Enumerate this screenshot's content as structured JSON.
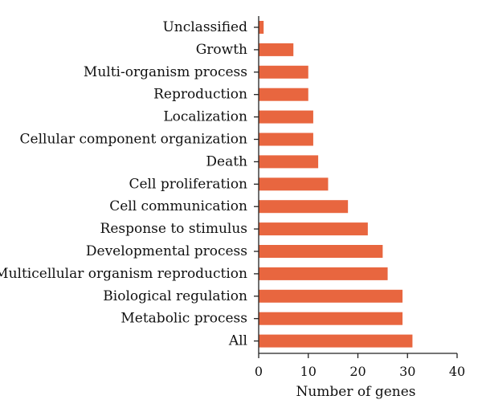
{
  "chart_data": {
    "type": "bar",
    "orientation": "horizontal",
    "title": "",
    "xlabel": "Number of genes",
    "ylabel": "",
    "xlim": [
      0,
      40
    ],
    "xticks": [
      0,
      10,
      20,
      30,
      40
    ],
    "grid": false,
    "bar_color": "#e8663f",
    "categories": [
      "Unclassified",
      "Growth",
      "Multi-organism process",
      "Reproduction",
      "Localization",
      "Cellular component organization",
      "Death",
      "Cell proliferation",
      "Cell communication",
      "Response to stimulus",
      "Developmental process",
      "Multicellular organism reproduction",
      "Biological regulation",
      "Metabolic process",
      "All"
    ],
    "values": [
      1,
      7,
      10,
      10,
      11,
      11,
      12,
      14,
      18,
      22,
      25,
      26,
      29,
      29,
      31
    ]
  }
}
